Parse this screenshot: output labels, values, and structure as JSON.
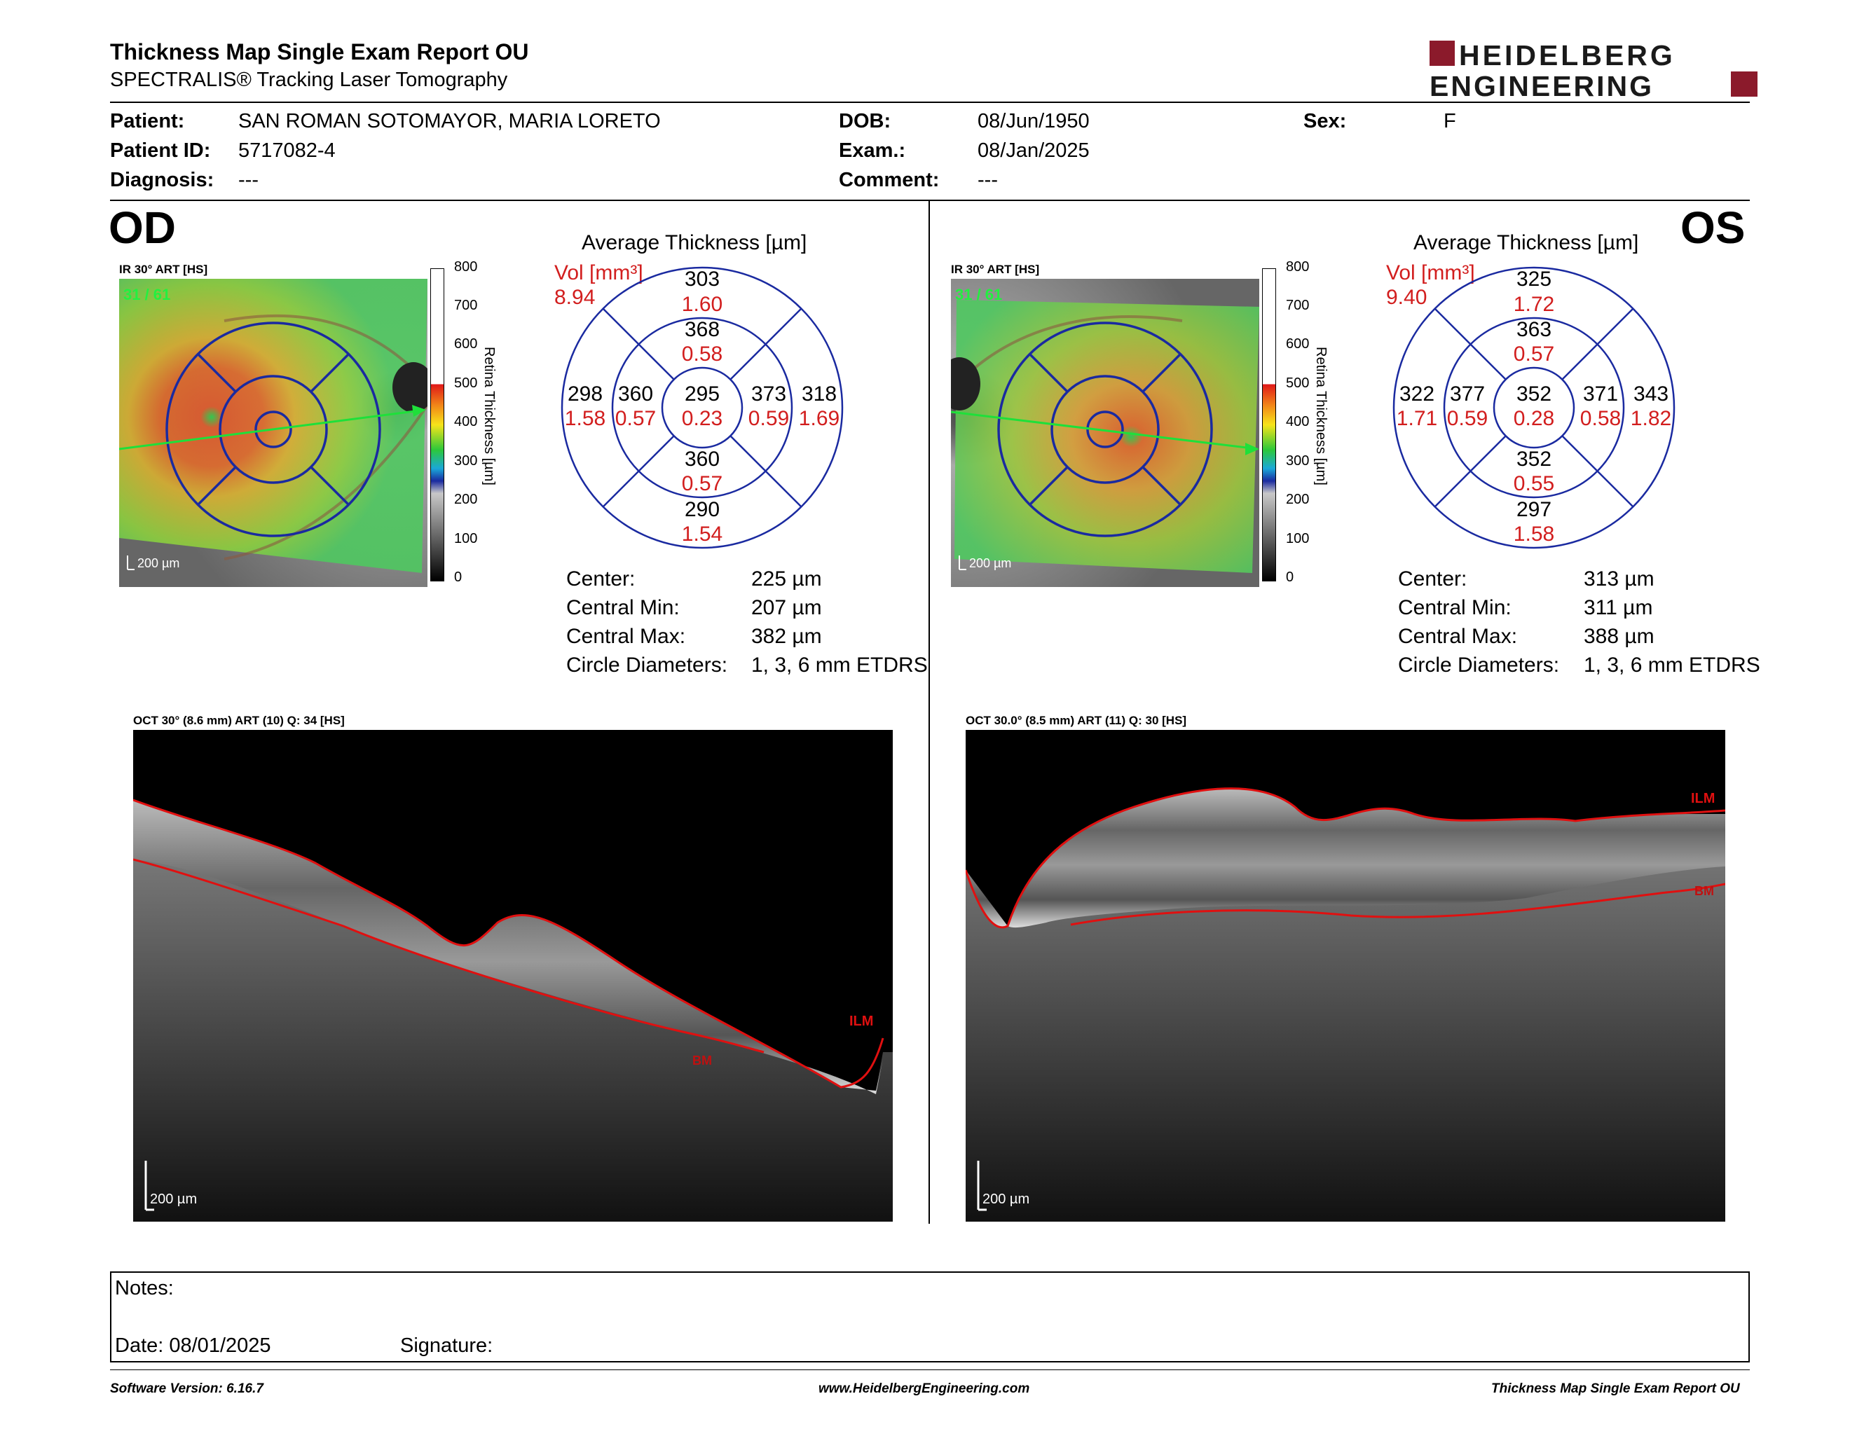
{
  "report": {
    "title": "Thickness Map Single Exam Report OU",
    "subtitle": "SPECTRALIS® Tracking Laser Tomography",
    "logo": {
      "line1": "HEIDELBERG",
      "line2": "ENGINEERING",
      "brand_color": "#8b1a2b"
    }
  },
  "patient": {
    "patient_label": "Patient:",
    "patient_value": "SAN ROMAN SOTOMAYOR, MARIA LORETO",
    "id_label": "Patient ID:",
    "id_value": "5717082-4",
    "diagnosis_label": "Diagnosis:",
    "diagnosis_value": "---",
    "dob_label": "DOB:",
    "dob_value": "08/Jun/1950",
    "exam_label": "Exam.:",
    "exam_value": "08/Jan/2025",
    "comment_label": "Comment:",
    "comment_value": "---",
    "sex_label": "Sex:",
    "sex_value": "F"
  },
  "colorbar": {
    "ticks": [
      "800",
      "700",
      "600",
      "500",
      "400",
      "300",
      "200",
      "100",
      "0"
    ],
    "label": "Retina  Thickness [µm]"
  },
  "od": {
    "eye": "OD",
    "fundus_label": "IR 30° ART [HS]",
    "frame": "31 / 61",
    "scale": "200 µm",
    "avg_title": "Average Thickness [µm]",
    "vol_label": "Vol [mm³]",
    "vol_value": "8.94",
    "etdrs": {
      "center": [
        "295",
        "0.23"
      ],
      "inner_sup": [
        "368",
        "0.58"
      ],
      "inner_inf": [
        "360",
        "0.57"
      ],
      "inner_temp": [
        "360",
        "0.57"
      ],
      "inner_nasal": [
        "373",
        "0.59"
      ],
      "outer_sup": [
        "303",
        "1.60"
      ],
      "outer_inf": [
        "290",
        "1.54"
      ],
      "outer_temp": [
        "298",
        "1.58"
      ],
      "outer_nasal": [
        "318",
        "1.69"
      ]
    },
    "stats": [
      {
        "label": "Center:",
        "value": "225 µm"
      },
      {
        "label": "Central Min:",
        "value": "207 µm"
      },
      {
        "label": "Central Max:",
        "value": "382 µm"
      },
      {
        "label": "Circle Diameters:",
        "value": "1, 3, 6 mm ETDRS"
      }
    ],
    "oct_label": "OCT 30° (8.6 mm) ART (10) Q: 34 [HS]",
    "oct_scale": "200 µm",
    "ilm": "ILM",
    "bm": "BM"
  },
  "os": {
    "eye": "OS",
    "fundus_label": "IR 30° ART [HS]",
    "frame": "31 / 61",
    "scale": "200 µm",
    "avg_title": "Average Thickness [µm]",
    "vol_label": "Vol [mm³]",
    "vol_value": "9.40",
    "etdrs": {
      "center": [
        "352",
        "0.28"
      ],
      "inner_sup": [
        "363",
        "0.57"
      ],
      "inner_inf": [
        "352",
        "0.55"
      ],
      "inner_temp": [
        "377",
        "0.59"
      ],
      "inner_nasal": [
        "371",
        "0.58"
      ],
      "outer_sup": [
        "325",
        "1.72"
      ],
      "outer_inf": [
        "297",
        "1.58"
      ],
      "outer_temp": [
        "322",
        "1.71"
      ],
      "outer_nasal": [
        "343",
        "1.82"
      ]
    },
    "stats": [
      {
        "label": "Center:",
        "value": "313 µm"
      },
      {
        "label": "Central Min:",
        "value": "311 µm"
      },
      {
        "label": "Central Max:",
        "value": "388 µm"
      },
      {
        "label": "Circle Diameters:",
        "value": "1, 3, 6 mm ETDRS"
      }
    ],
    "oct_label": "OCT 30.0° (8.5 mm) ART (11) Q: 30 [HS]",
    "oct_scale": "200 µm",
    "ilm": "ILM",
    "bm": "BM"
  },
  "notes": {
    "notes_label": "Notes:",
    "date_label": "Date: 08/01/2025",
    "signature_label": "Signature:"
  },
  "footer": {
    "software": "Software Version: 6.16.7",
    "website": "www.HeidelbergEngineering.com",
    "report_name": "Thickness Map Single Exam Report OU"
  },
  "colors": {
    "value_red": "#d21e1e",
    "grid_blue": "#1a2aa0",
    "ilm_red": "#e01010"
  }
}
